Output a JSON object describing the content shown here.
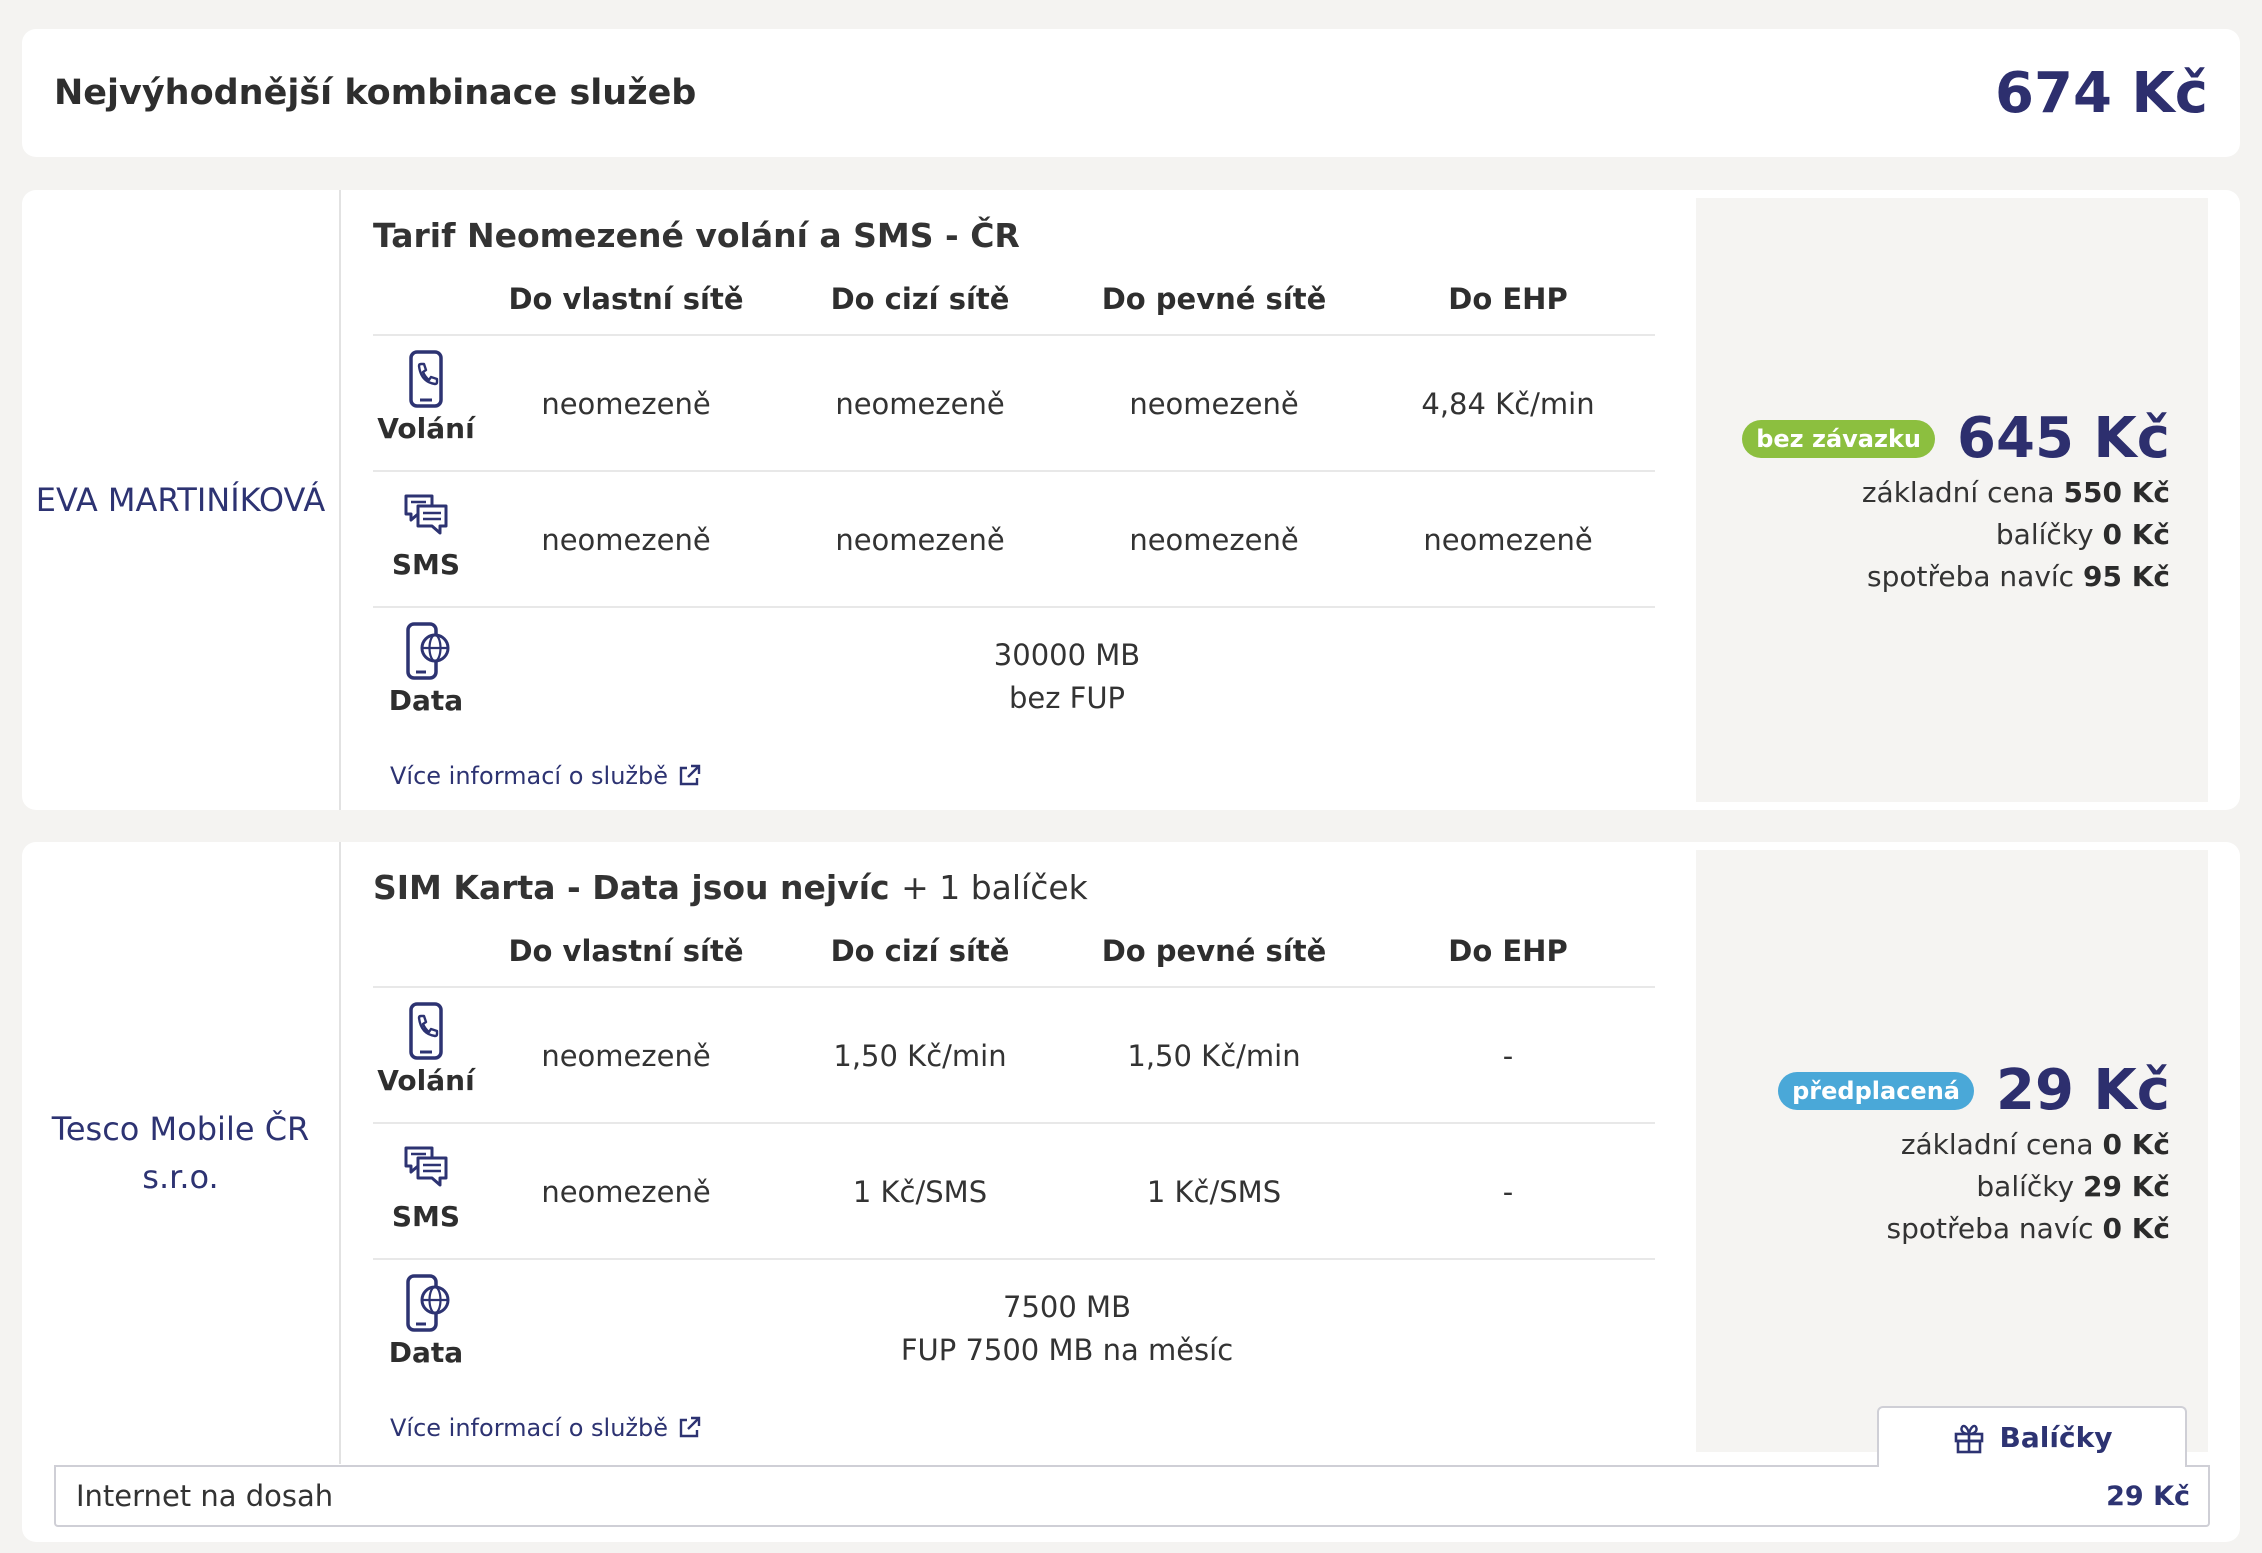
{
  "summary": {
    "title": "Nejvýhodnější kombinace služeb",
    "total": "674 Kč"
  },
  "columns": [
    "Do vlastní sítě",
    "Do cizí sítě",
    "Do pevné sítě",
    "Do EHP"
  ],
  "row_labels": {
    "calls": "Volání",
    "sms": "SMS",
    "data": "Data"
  },
  "colors": {
    "accent": "#2d2f6e",
    "badge_green": "#8cbf3f",
    "badge_blue": "#4aa8d8"
  },
  "offers": [
    {
      "provider": "EVA MARTINÍKOVÁ",
      "tariff": "Tarif Neomezené volání a SMS - ČR",
      "tariff_extra": "",
      "calls": [
        "neomezeně",
        "neomezeně",
        "neomezeně",
        "4,84 Kč/min"
      ],
      "sms": [
        "neomezeně",
        "neomezeně",
        "neomezeně",
        "neomezeně"
      ],
      "data": {
        "volume": "30000 MB",
        "fup": "bez FUP"
      },
      "more_info": "Více informací o službě",
      "badge": "bez závazku",
      "price": "645 Kč",
      "breakdown": [
        {
          "label": "základní cena",
          "value": "550 Kč"
        },
        {
          "label": "balíčky",
          "value": "0 Kč"
        },
        {
          "label": "spotřeba navíc",
          "value": "95 Kč"
        }
      ]
    },
    {
      "provider": "Tesco Mobile ČR s.r.o.",
      "tariff": "SIM Karta - Data jsou nejvíc",
      "tariff_extra": "+ 1 balíček",
      "calls": [
        "neomezeně",
        "1,50 Kč/min",
        "1,50 Kč/min",
        "-"
      ],
      "sms": [
        "neomezeně",
        "1 Kč/SMS",
        "1 Kč/SMS",
        "-"
      ],
      "data": {
        "volume": "7500 MB",
        "fup": "FUP 7500 MB na měsíc"
      },
      "more_info": "Více informací o službě",
      "badge": "předplacená",
      "price": "29 Kč",
      "breakdown": [
        {
          "label": "základní cena",
          "value": "0 Kč"
        },
        {
          "label": "balíčky",
          "value": "29 Kč"
        },
        {
          "label": "spotřeba navíc",
          "value": "0 Kč"
        }
      ]
    }
  ],
  "packages": {
    "tab_label": "Balíčky",
    "items": [
      {
        "name": "Internet na dosah",
        "price": "29 Kč"
      }
    ]
  }
}
